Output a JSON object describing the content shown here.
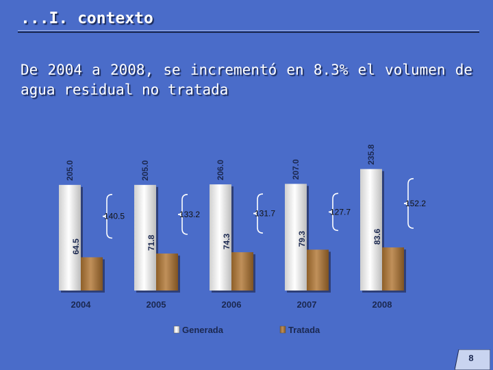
{
  "slide": {
    "header_title": "...I. contexto",
    "headline": "De 2004 a 2008, se incrementó en 8.3% el volumen de agua residual no tratada",
    "slide_number": "8"
  },
  "colors": {
    "background": "#4a6cc9",
    "generada": "#f0f0f0",
    "tratada": "#a8783e",
    "label_text": "#1b2850",
    "brace": "#ffffff"
  },
  "chart_data": {
    "type": "bar",
    "categories": [
      "2004",
      "2005",
      "2006",
      "2007",
      "2008"
    ],
    "series": [
      {
        "name": "Generada",
        "values": [
          205.0,
          205.0,
          206.0,
          207.0,
          235.8
        ],
        "labels": [
          "205.0",
          "205.0",
          "206.0",
          "207.0",
          "235.8"
        ]
      },
      {
        "name": "Tratada",
        "values": [
          64.5,
          71.8,
          74.3,
          79.3,
          83.6
        ],
        "labels": [
          "64.5",
          "71.8",
          "74.3",
          "79.3",
          "83.6"
        ]
      }
    ],
    "difference_labels": [
      "140.5",
      "133.2",
      "131.7",
      "127.7",
      "152.2"
    ],
    "legend_position": "bottom",
    "grid": false
  }
}
